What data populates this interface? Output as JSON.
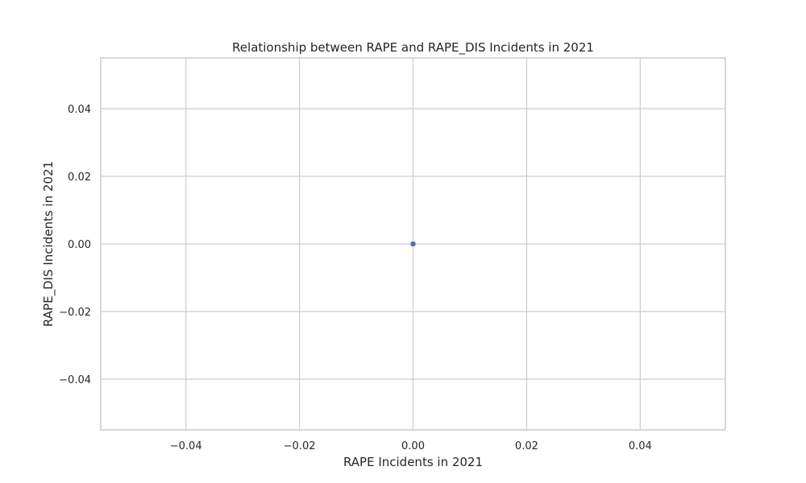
{
  "chart_data": {
    "type": "scatter",
    "title": "Relationship between RAPE and RAPE_DIS Incidents in 2021",
    "xlabel": "RAPE Incidents in 2021",
    "ylabel": "RAPE_DIS Incidents in 2021",
    "xlim": [
      -0.055,
      0.055
    ],
    "ylim": [
      -0.055,
      0.055
    ],
    "xticks": [
      -0.04,
      -0.02,
      0.0,
      0.02,
      0.04
    ],
    "xtick_labels": [
      "−0.04",
      "−0.02",
      "0.00",
      "0.02",
      "0.04"
    ],
    "yticks": [
      -0.04,
      -0.02,
      0.0,
      0.02,
      0.04
    ],
    "ytick_labels": [
      "−0.04",
      "−0.02",
      "0.00",
      "0.02",
      "0.04"
    ],
    "grid": true,
    "points": [
      {
        "x": 0.0,
        "y": 0.0
      }
    ],
    "point_color": "#4c72b0",
    "grid_color": "#cccccc",
    "frame_color": "#cccccc"
  }
}
